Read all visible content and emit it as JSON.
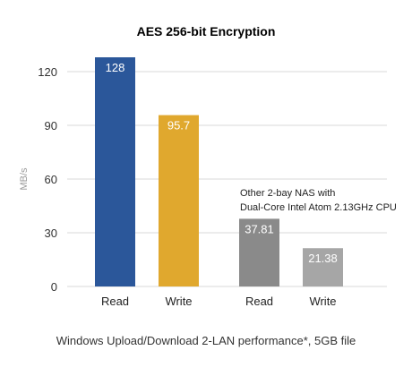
{
  "chart_data": {
    "type": "bar",
    "title": "AES 256-bit Encryption",
    "ylabel": "MB/s",
    "ylim": [
      0,
      120
    ],
    "yticks": [
      0,
      30,
      60,
      90,
      120
    ],
    "grid": true,
    "categories": [
      "Read",
      "Write",
      "Read",
      "Write"
    ],
    "values": [
      128,
      95.7,
      37.81,
      21.38
    ],
    "value_labels": [
      "128",
      "95.7",
      "37.81",
      "21.38"
    ],
    "colors": [
      "#2b579a",
      "#e0a82e",
      "#8a8a8a",
      "#a6a6a6"
    ],
    "annotation": [
      "Other 2-bay NAS with",
      "Dual-Core Intel Atom 2.13GHz CPU"
    ],
    "caption": "Windows Upload/Download 2-LAN performance*, 5GB file"
  }
}
